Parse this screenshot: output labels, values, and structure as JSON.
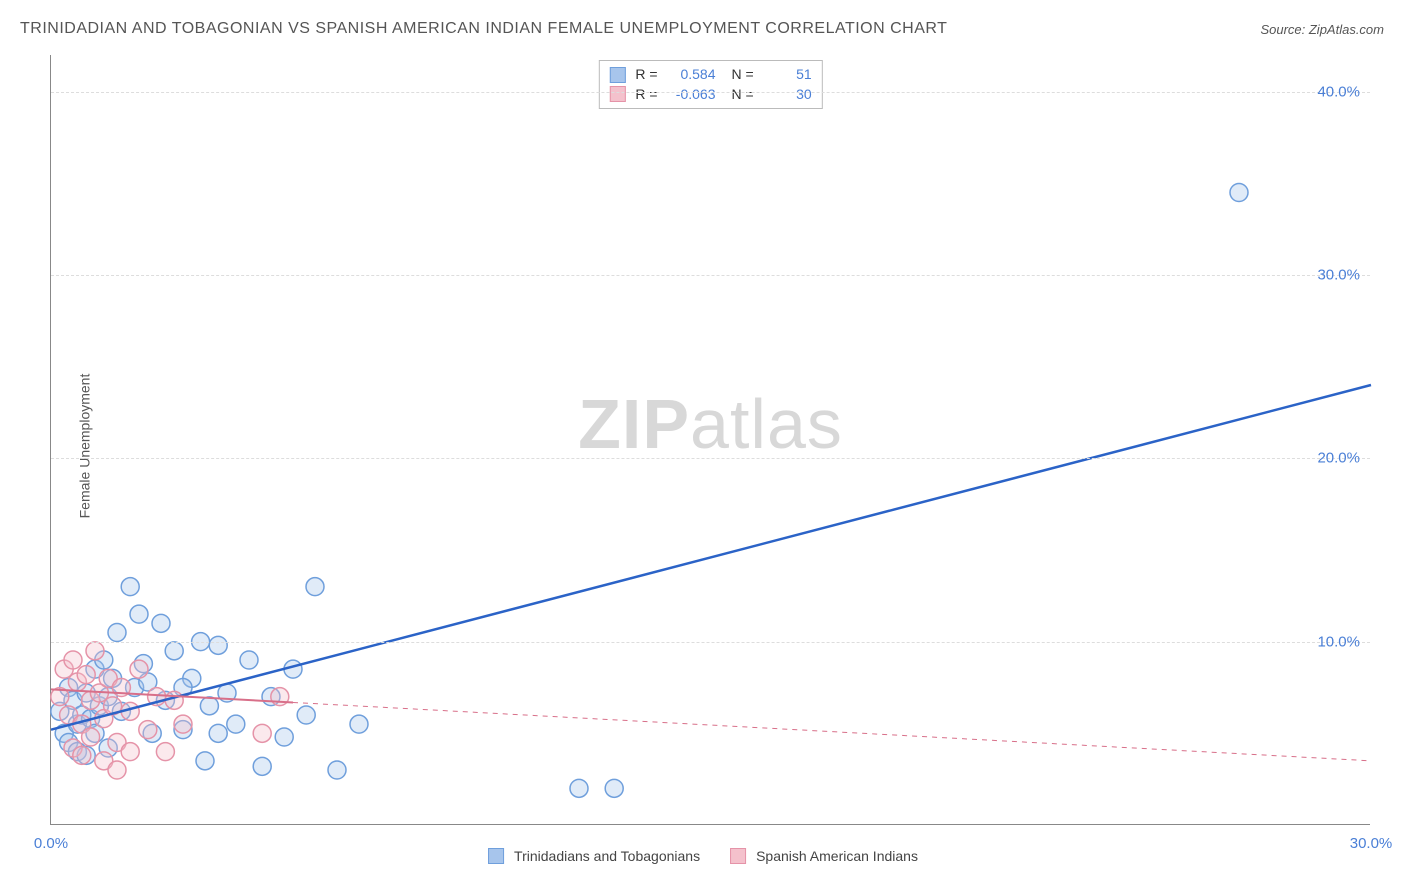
{
  "title": "TRINIDADIAN AND TOBAGONIAN VS SPANISH AMERICAN INDIAN FEMALE UNEMPLOYMENT CORRELATION CHART",
  "source_prefix": "Source: ",
  "source": "ZipAtlas.com",
  "y_axis_label": "Female Unemployment",
  "watermark_bold": "ZIP",
  "watermark_rest": "atlas",
  "chart": {
    "type": "scatter-correlation",
    "xlim": [
      0,
      30
    ],
    "ylim": [
      0,
      42
    ],
    "x_ticks": [
      {
        "v": 0,
        "label": "0.0%"
      },
      {
        "v": 30,
        "label": "30.0%"
      }
    ],
    "y_ticks": [
      {
        "v": 10,
        "label": "10.0%"
      },
      {
        "v": 20,
        "label": "20.0%"
      },
      {
        "v": 30,
        "label": "30.0%"
      },
      {
        "v": 40,
        "label": "40.0%"
      }
    ],
    "gridlines_y": [
      10,
      20,
      30,
      40
    ],
    "background_color": "#ffffff",
    "grid_color": "#dddddd",
    "axis_color": "#888888",
    "marker_radius": 9,
    "marker_fill_opacity": 0.35,
    "marker_stroke_width": 1.5,
    "series": [
      {
        "key": "trinidadians",
        "label": "Trinidadians and Tobagonians",
        "R": "0.584",
        "N": "51",
        "fill": "#a7c5ec",
        "stroke": "#6f9fdc",
        "line_color": "#2b63c7",
        "line_width": 2.5,
        "trend": {
          "x1": 0,
          "y1": 5.2,
          "x2": 30,
          "y2": 24.0,
          "dashed_after_x": 30
        },
        "points": [
          [
            0.2,
            6.2
          ],
          [
            0.3,
            5.0
          ],
          [
            0.4,
            7.5
          ],
          [
            0.5,
            6.8
          ],
          [
            0.6,
            5.5
          ],
          [
            0.7,
            6.0
          ],
          [
            0.8,
            7.2
          ],
          [
            0.9,
            5.8
          ],
          [
            1.0,
            8.5
          ],
          [
            1.1,
            6.5
          ],
          [
            1.2,
            9.0
          ],
          [
            1.3,
            7.0
          ],
          [
            1.4,
            8.0
          ],
          [
            1.5,
            10.5
          ],
          [
            1.6,
            6.2
          ],
          [
            1.8,
            13.0
          ],
          [
            1.9,
            7.5
          ],
          [
            2.0,
            11.5
          ],
          [
            2.1,
            8.8
          ],
          [
            2.3,
            5.0
          ],
          [
            2.5,
            11.0
          ],
          [
            2.6,
            6.8
          ],
          [
            2.8,
            9.5
          ],
          [
            3.0,
            5.2
          ],
          [
            3.2,
            8.0
          ],
          [
            3.4,
            10.0
          ],
          [
            3.5,
            3.5
          ],
          [
            3.6,
            6.5
          ],
          [
            3.8,
            9.8
          ],
          [
            4.0,
            7.2
          ],
          [
            4.2,
            5.5
          ],
          [
            4.5,
            9.0
          ],
          [
            4.8,
            3.2
          ],
          [
            5.0,
            7.0
          ],
          [
            5.3,
            4.8
          ],
          [
            5.5,
            8.5
          ],
          [
            5.8,
            6.0
          ],
          [
            6.0,
            13.0
          ],
          [
            6.5,
            3.0
          ],
          [
            7.0,
            5.5
          ],
          [
            12.0,
            2.0
          ],
          [
            12.8,
            2.0
          ],
          [
            27.0,
            34.5
          ],
          [
            0.4,
            4.5
          ],
          [
            0.6,
            4.0
          ],
          [
            0.8,
            3.8
          ],
          [
            1.0,
            5.0
          ],
          [
            1.3,
            4.2
          ],
          [
            2.2,
            7.8
          ],
          [
            3.0,
            7.5
          ],
          [
            3.8,
            5.0
          ]
        ]
      },
      {
        "key": "spanish_american_indians",
        "label": "Spanish American Indians",
        "R": "-0.063",
        "N": "30",
        "fill": "#f4c1cc",
        "stroke": "#e593a8",
        "line_color": "#d86f89",
        "line_width": 2,
        "trend": {
          "x1": 0,
          "y1": 7.4,
          "x2": 30,
          "y2": 3.5,
          "dashed_after_x": 5.5
        },
        "points": [
          [
            0.2,
            7.0
          ],
          [
            0.3,
            8.5
          ],
          [
            0.4,
            6.0
          ],
          [
            0.5,
            9.0
          ],
          [
            0.6,
            7.8
          ],
          [
            0.7,
            5.5
          ],
          [
            0.8,
            8.2
          ],
          [
            0.9,
            6.8
          ],
          [
            1.0,
            9.5
          ],
          [
            1.1,
            7.2
          ],
          [
            1.2,
            5.8
          ],
          [
            1.3,
            8.0
          ],
          [
            1.4,
            6.5
          ],
          [
            1.5,
            4.5
          ],
          [
            1.6,
            7.5
          ],
          [
            1.8,
            6.2
          ],
          [
            2.0,
            8.5
          ],
          [
            2.2,
            5.2
          ],
          [
            2.4,
            7.0
          ],
          [
            2.6,
            4.0
          ],
          [
            2.8,
            6.8
          ],
          [
            3.0,
            5.5
          ],
          [
            0.5,
            4.2
          ],
          [
            0.7,
            3.8
          ],
          [
            0.9,
            4.8
          ],
          [
            1.2,
            3.5
          ],
          [
            1.5,
            3.0
          ],
          [
            1.8,
            4.0
          ],
          [
            4.8,
            5.0
          ],
          [
            5.2,
            7.0
          ]
        ]
      }
    ]
  },
  "legend_corr": {
    "R_label": "R =",
    "N_label": "N ="
  }
}
